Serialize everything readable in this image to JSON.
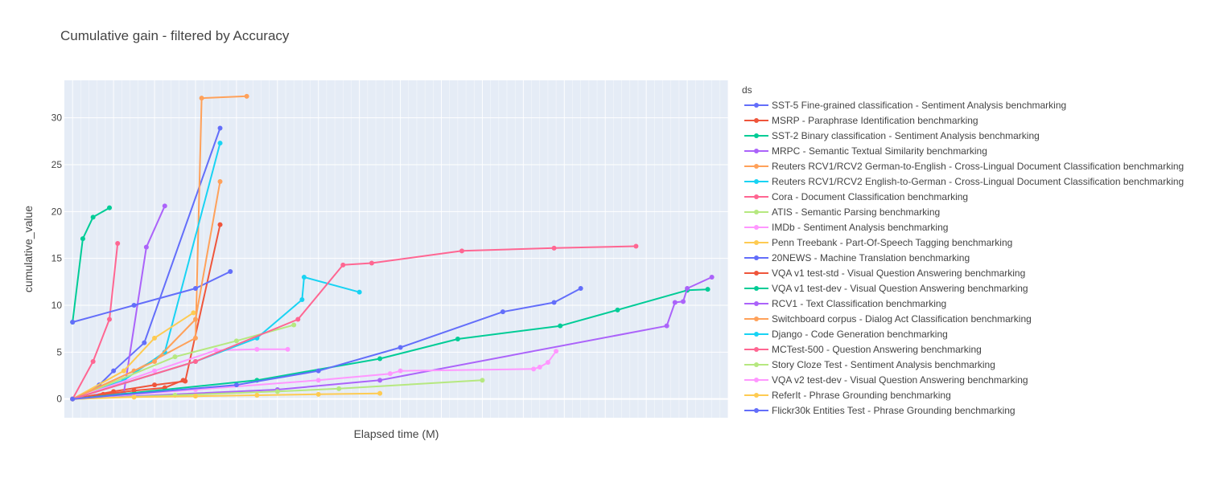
{
  "chart_data": {
    "type": "line",
    "title": "Cumulative gain - filtered by Accuracy",
    "xlabel": "Elapsed time (M)",
    "ylabel": "cumulative_value",
    "xlim": [
      -4,
      320
    ],
    "ylim": [
      -2,
      34
    ],
    "yticks": [
      0,
      5,
      10,
      15,
      20,
      25,
      30
    ],
    "show_xticks": false,
    "grid": true,
    "legend_title": "ds",
    "legend_position": "right",
    "series": [
      {
        "name": "SST-5 Fine-grained classification - Sentiment Analysis benchmarking",
        "color": "#636efa",
        "x": [
          0,
          13,
          20,
          35,
          72
        ],
        "y": [
          0,
          1.5,
          3.0,
          6.0,
          28.9
        ]
      },
      {
        "name": "MSRP - Paraphrase Identification benchmarking",
        "color": "#EF553B",
        "x": [
          0,
          20,
          40,
          55,
          72
        ],
        "y": [
          0,
          0.8,
          1.5,
          1.9,
          18.6
        ]
      },
      {
        "name": "SST-2 Binary classification - Sentiment Analysis benchmarking",
        "color": "#00cc96",
        "x": [
          0,
          5,
          10,
          18
        ],
        "y": [
          8.2,
          17.1,
          19.4,
          20.4
        ]
      },
      {
        "name": "MRPC - Semantic Textual Similarity benchmarking",
        "color": "#ab63fa",
        "x": [
          0,
          12,
          25,
          36,
          45
        ],
        "y": [
          0,
          0.3,
          0.6,
          16.2,
          20.6
        ]
      },
      {
        "name": "Reuters RCV1/RCV2 German-to-English - Cross-Lingual Document Classification benchmarking",
        "color": "#FFA15A",
        "x": [
          0,
          30,
          60,
          63,
          85
        ],
        "y": [
          0,
          3.0,
          6.5,
          32.1,
          32.3
        ]
      },
      {
        "name": "Reuters RCV1/RCV2 English-to-German - Cross-Lingual Document Classification benchmarking",
        "color": "#19d3f3",
        "x": [
          0,
          25,
          45,
          72
        ],
        "y": [
          0,
          2.0,
          5.0,
          27.3
        ]
      },
      {
        "name": "Cora - Document Classification benchmarking",
        "color": "#FF6692",
        "x": [
          0,
          10,
          18,
          22
        ],
        "y": [
          0,
          4.0,
          8.5,
          16.6
        ]
      },
      {
        "name": "ATIS - Semantic Parsing benchmarking",
        "color": "#B6E880",
        "x": [
          0,
          50,
          80,
          108
        ],
        "y": [
          0,
          4.5,
          6.2,
          7.9
        ]
      },
      {
        "name": "IMDb - Sentiment Analysis benchmarking",
        "color": "#FF97FF",
        "x": [
          0,
          40,
          70,
          90,
          105
        ],
        "y": [
          0,
          3.0,
          5.2,
          5.3,
          5.3
        ]
      },
      {
        "name": "Penn Treebank - Part-Of-Speech Tagging benchmarking",
        "color": "#FECB52",
        "x": [
          0,
          25,
          40,
          59
        ],
        "y": [
          0,
          3.0,
          6.5,
          9.2
        ]
      },
      {
        "name": "20NEWS - Machine Translation benchmarking",
        "color": "#636efa",
        "x": [
          0,
          30,
          60,
          77
        ],
        "y": [
          8.2,
          10.0,
          11.8,
          13.6
        ]
      },
      {
        "name": "VQA v1 test-std - Visual Question Answering benchmarking",
        "color": "#EF553B",
        "x": [
          0,
          15,
          30,
          45,
          54
        ],
        "y": [
          0,
          0.5,
          0.9,
          1.2,
          2.0
        ]
      },
      {
        "name": "VQA v1 test-dev - Visual Question Answering benchmarking",
        "color": "#00cc96",
        "x": [
          0,
          90,
          150,
          188,
          238,
          266,
          300,
          310
        ],
        "y": [
          0,
          2.0,
          4.3,
          6.4,
          7.8,
          9.5,
          11.6,
          11.7
        ]
      },
      {
        "name": "RCV1 - Text Classification benchmarking",
        "color": "#ab63fa",
        "x": [
          0,
          100,
          150,
          290,
          294,
          298,
          300,
          312
        ],
        "y": [
          0,
          1.0,
          2.0,
          7.8,
          10.3,
          10.4,
          11.8,
          13.0
        ]
      },
      {
        "name": "Switchboard corpus - Dialog Act Classification benchmarking",
        "color": "#FFA15A",
        "x": [
          0,
          40,
          60,
          72
        ],
        "y": [
          0,
          4.0,
          8.5,
          23.2
        ]
      },
      {
        "name": "Django - Code Generation benchmarking",
        "color": "#19d3f3",
        "x": [
          0,
          60,
          90,
          112,
          113,
          140
        ],
        "y": [
          0,
          4.0,
          6.5,
          10.6,
          13.0,
          11.4
        ]
      },
      {
        "name": "MCTest-500 - Question Answering benchmarking",
        "color": "#FF6692",
        "x": [
          0,
          60,
          110,
          132,
          146,
          190,
          235,
          275
        ],
        "y": [
          0,
          4.0,
          8.5,
          14.3,
          14.5,
          15.8,
          16.1,
          16.3
        ]
      },
      {
        "name": "Story Cloze Test - Sentiment Analysis benchmarking",
        "color": "#B6E880",
        "x": [
          0,
          50,
          100,
          130,
          200
        ],
        "y": [
          0,
          0.4,
          0.8,
          1.1,
          2.0
        ]
      },
      {
        "name": "VQA v2 test-dev - Visual Question Answering benchmarking",
        "color": "#FF97FF",
        "x": [
          0,
          60,
          120,
          155,
          160,
          225,
          228,
          232,
          236
        ],
        "y": [
          0,
          1.0,
          2.0,
          2.7,
          3.0,
          3.2,
          3.4,
          3.9,
          5.1
        ]
      },
      {
        "name": "ReferIt - Phrase Grounding benchmarking",
        "color": "#FECB52",
        "x": [
          0,
          30,
          60,
          90,
          120,
          150
        ],
        "y": [
          0,
          0.2,
          0.3,
          0.4,
          0.5,
          0.6
        ]
      },
      {
        "name": "Flickr30k Entities Test - Phrase Grounding benchmarking",
        "color": "#636efa",
        "x": [
          0,
          80,
          120,
          160,
          210,
          235,
          248
        ],
        "y": [
          0,
          1.5,
          3.0,
          5.5,
          9.3,
          10.3,
          11.8
        ]
      }
    ]
  }
}
